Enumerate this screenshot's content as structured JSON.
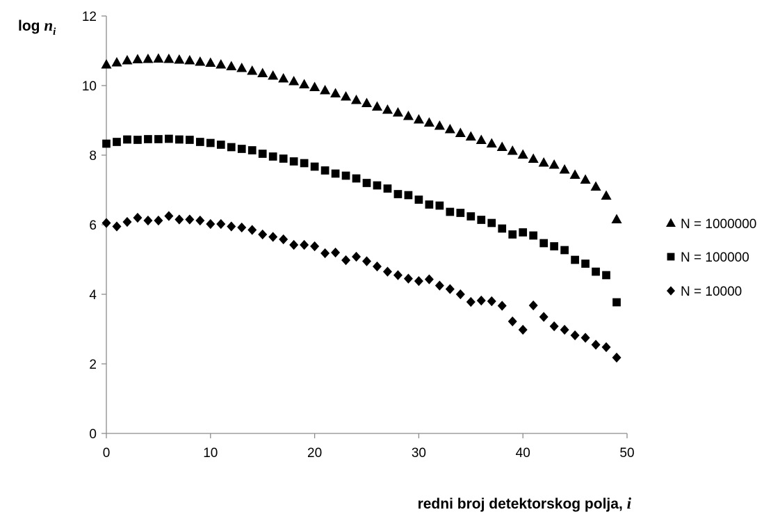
{
  "chart_data": {
    "type": "scatter",
    "ylabel_prefix": "log ",
    "ylabel_var": "n",
    "ylabel_sub": "i",
    "xlabel_text": "redni broj detektorskog polja, ",
    "xlabel_var": "i",
    "xlim": [
      0,
      50
    ],
    "ylim": [
      0,
      12
    ],
    "xticks": [
      "0",
      "10",
      "20",
      "30",
      "40",
      "50"
    ],
    "yticks": [
      "0",
      "2",
      "4",
      "6",
      "8",
      "10",
      "12"
    ],
    "grid": false,
    "legend_position": "right",
    "series": [
      {
        "name": "N = 1000000",
        "marker": "triangle",
        "x": [
          0,
          1,
          2,
          3,
          4,
          5,
          6,
          7,
          8,
          9,
          10,
          11,
          12,
          13,
          14,
          15,
          16,
          17,
          18,
          19,
          20,
          21,
          22,
          23,
          24,
          25,
          26,
          27,
          28,
          29,
          30,
          31,
          32,
          33,
          34,
          35,
          36,
          37,
          38,
          39,
          40,
          41,
          42,
          43,
          44,
          45,
          46,
          47,
          48,
          49
        ],
        "values": [
          10.6,
          10.66,
          10.72,
          10.75,
          10.76,
          10.77,
          10.76,
          10.74,
          10.72,
          10.68,
          10.65,
          10.6,
          10.55,
          10.5,
          10.42,
          10.35,
          10.28,
          10.2,
          10.12,
          10.03,
          9.95,
          9.86,
          9.77,
          9.68,
          9.58,
          9.49,
          9.39,
          9.3,
          9.22,
          9.12,
          9.02,
          8.93,
          8.84,
          8.74,
          8.63,
          8.53,
          8.43,
          8.33,
          8.23,
          8.12,
          8.01,
          7.89,
          7.78,
          7.72,
          7.58,
          7.43,
          7.29,
          7.09,
          6.83,
          6.15
        ]
      },
      {
        "name": "N = 100000",
        "marker": "square",
        "x": [
          0,
          1,
          2,
          3,
          4,
          5,
          6,
          7,
          8,
          9,
          10,
          11,
          12,
          13,
          14,
          15,
          16,
          17,
          18,
          19,
          20,
          21,
          22,
          23,
          24,
          25,
          26,
          27,
          28,
          29,
          30,
          31,
          32,
          33,
          34,
          35,
          36,
          37,
          38,
          39,
          40,
          41,
          42,
          43,
          44,
          45,
          46,
          47,
          48,
          49
        ],
        "values": [
          8.33,
          8.38,
          8.45,
          8.44,
          8.46,
          8.46,
          8.47,
          8.45,
          8.44,
          8.38,
          8.35,
          8.3,
          8.23,
          8.18,
          8.14,
          8.04,
          7.96,
          7.9,
          7.82,
          7.77,
          7.67,
          7.56,
          7.47,
          7.41,
          7.33,
          7.2,
          7.13,
          7.04,
          6.88,
          6.85,
          6.72,
          6.58,
          6.55,
          6.37,
          6.34,
          6.24,
          6.14,
          6.05,
          5.89,
          5.72,
          5.78,
          5.69,
          5.47,
          5.38,
          5.27,
          4.99,
          4.88,
          4.65,
          4.55,
          3.77
        ]
      },
      {
        "name": "N = 10000",
        "marker": "diamond",
        "x": [
          0,
          1,
          2,
          3,
          4,
          5,
          6,
          7,
          8,
          9,
          10,
          11,
          12,
          13,
          14,
          15,
          16,
          17,
          18,
          19,
          20,
          21,
          22,
          23,
          24,
          25,
          26,
          27,
          28,
          29,
          30,
          31,
          32,
          33,
          34,
          35,
          36,
          37,
          38,
          39,
          40,
          41,
          42,
          43,
          44,
          45,
          46,
          47,
          48,
          49
        ],
        "values": [
          6.05,
          5.95,
          6.08,
          6.2,
          6.12,
          6.12,
          6.25,
          6.15,
          6.15,
          6.12,
          6.02,
          6.02,
          5.95,
          5.92,
          5.85,
          5.72,
          5.65,
          5.58,
          5.42,
          5.42,
          5.38,
          5.18,
          5.2,
          4.98,
          5.08,
          4.95,
          4.8,
          4.65,
          4.55,
          4.45,
          4.38,
          4.43,
          4.25,
          4.15,
          4.0,
          3.78,
          3.82,
          3.8,
          3.67,
          3.22,
          2.98,
          3.68,
          3.35,
          3.08,
          2.98,
          2.82,
          2.75,
          2.55,
          2.48,
          2.18
        ]
      }
    ]
  }
}
